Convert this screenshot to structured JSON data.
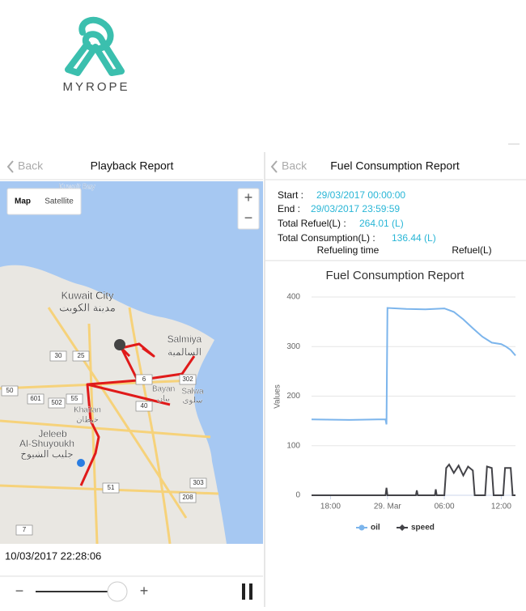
{
  "header": {
    "brand": "MYROPE"
  },
  "playback": {
    "back": "Back",
    "title": "Playback Report",
    "map": {
      "map_button": "Map",
      "satellite_button": "Satellite",
      "zoom_in": "+",
      "zoom_out": "−",
      "place_labels": [
        "Kuwait Bay",
        "Kuwait City",
        "مدينة الكويت",
        "Salmiya",
        "السالمية",
        "Bayan",
        "بيان",
        "Salwa",
        "سلوى",
        "Khaitan",
        "خيطان",
        "Jeleeb",
        "Al-Shuyoukh",
        "جليب الشيوخ"
      ],
      "road_shields": [
        "302",
        "50",
        "601",
        "502",
        "55",
        "6",
        "40",
        "208",
        "303",
        "51",
        "7",
        "30",
        "25"
      ]
    },
    "timestamp": "10/03/2017 22:28:06",
    "slider_minus": "−",
    "slider_plus": "+"
  },
  "fuel": {
    "back": "Back",
    "title": "Fuel Consumption Report",
    "start_label": "Start :",
    "start": "29/03/2017 00:00:00",
    "end_label": "End :",
    "end": "29/03/2017 23:59:59",
    "total_refuel_label": "Total Refuel(L) :",
    "total_refuel": "264.01 (L)",
    "total_consumption_label": "Total Consumption(L) :",
    "total_consumption": "136.44 (L)",
    "table_headers": [
      "Refueling time",
      "Refuel(L)"
    ]
  },
  "chart_data": {
    "type": "line",
    "title": "Fuel Consumption Report",
    "y_label": "Values",
    "xlim": [
      -8,
      13.5
    ],
    "xticks": [
      {
        "value": -6,
        "label": "18:00"
      },
      {
        "value": 0,
        "label": "29. Mar"
      },
      {
        "value": 6,
        "label": "06:00"
      },
      {
        "value": 12,
        "label": "12:00"
      }
    ],
    "ylim": [
      0,
      400
    ],
    "yticks": [
      0,
      100,
      200,
      300,
      400
    ],
    "grid": true,
    "series": [
      {
        "name": "oil",
        "color": "#7cb5ec",
        "x": [
          -8,
          -4,
          -1,
          -0.2,
          -0.1,
          0,
          2,
          4,
          6,
          7,
          8,
          9,
          10,
          11,
          12,
          12.5,
          13,
          13.5
        ],
        "values": [
          153,
          152,
          153,
          153,
          143,
          378,
          376,
          375,
          377,
          370,
          355,
          337,
          320,
          308,
          305,
          300,
          293,
          282
        ]
      },
      {
        "name": "speed",
        "color": "#434348",
        "x": [
          -8,
          -0.2,
          -0.1,
          0,
          3,
          3.1,
          3.2,
          5,
          5.1,
          5.2,
          6,
          6.2,
          6.5,
          7,
          7.5,
          8,
          8.5,
          9,
          9.2,
          10.3,
          10.5,
          11,
          11.2,
          12.2,
          12.4,
          13,
          13.2,
          13.5
        ],
        "values": [
          0,
          0,
          15,
          0,
          0,
          10,
          0,
          0,
          12,
          0,
          0,
          55,
          62,
          45,
          60,
          40,
          58,
          50,
          0,
          0,
          58,
          55,
          0,
          0,
          55,
          55,
          0,
          0
        ]
      }
    ]
  }
}
